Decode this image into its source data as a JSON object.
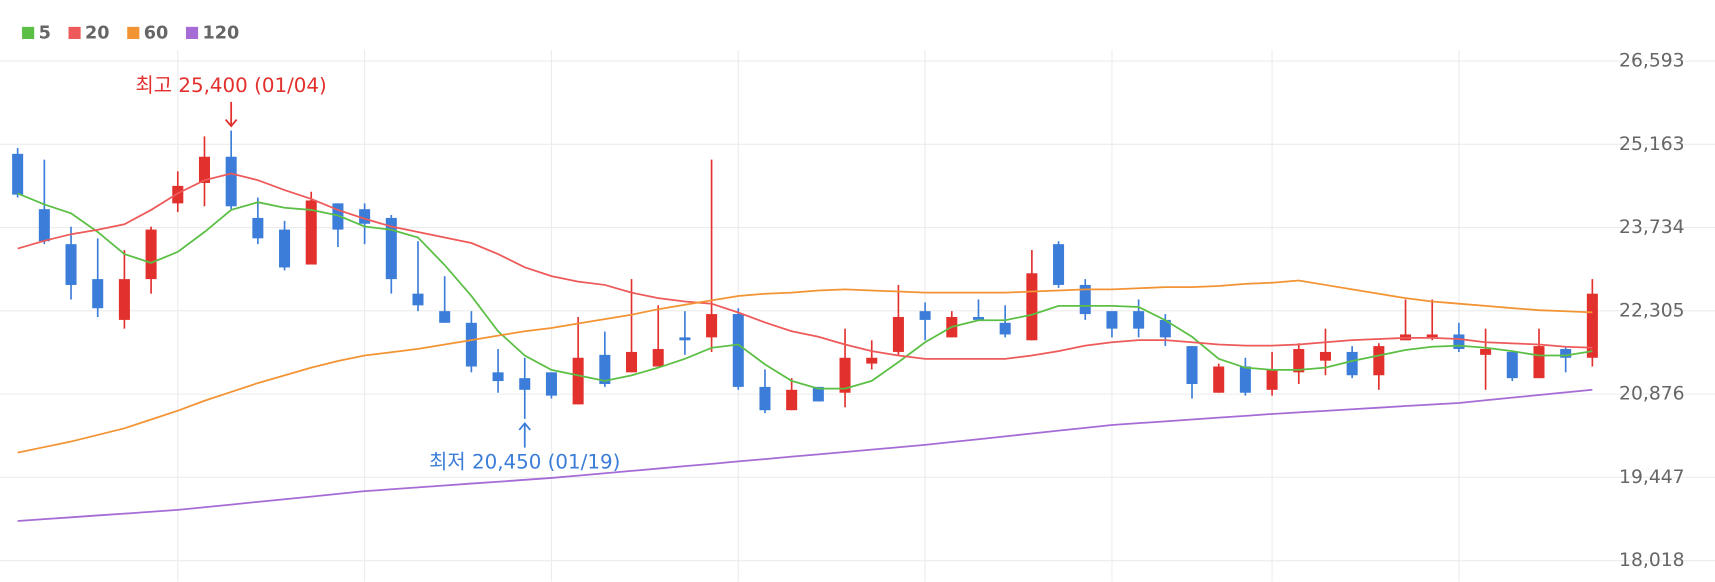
{
  "chart_data": {
    "type": "candlestick",
    "open": [
      25000,
      24050,
      23450,
      22850,
      22150,
      22850,
      24150,
      24500,
      24950,
      23900,
      23700,
      23100,
      24150,
      24050,
      23900,
      22600,
      22300,
      22100,
      21250,
      21150,
      21250,
      20700,
      21550,
      21250,
      21350,
      21850,
      21850,
      22250,
      21000,
      20600,
      21000,
      20900,
      21400,
      21600,
      22300,
      21850,
      22200,
      22100,
      21800,
      23450,
      22750,
      22300,
      22300,
      22150,
      21700,
      20900,
      21350,
      20950,
      21250,
      21450,
      21600,
      21200,
      21800,
      21850,
      21900,
      21550,
      21600,
      21150,
      21650,
      21500
    ],
    "high": [
      25100,
      24900,
      23750,
      23550,
      23350,
      23750,
      24700,
      25300,
      25400,
      24250,
      23850,
      24350,
      24150,
      24150,
      23950,
      23500,
      22900,
      22300,
      21650,
      21500,
      21250,
      22200,
      21950,
      22850,
      22400,
      22300,
      24900,
      22350,
      21300,
      21150,
      21000,
      22000,
      21800,
      22750,
      22450,
      22300,
      22500,
      22400,
      23350,
      23500,
      22850,
      22300,
      22500,
      22250,
      21700,
      21400,
      21500,
      21600,
      21750,
      22000,
      21700,
      21750,
      22500,
      22500,
      22100,
      22000,
      21600,
      22000,
      21700,
      22850
    ],
    "low": [
      24250,
      23450,
      22500,
      22200,
      22000,
      22600,
      24000,
      24100,
      24050,
      23450,
      23000,
      23100,
      23400,
      23450,
      22600,
      22300,
      22100,
      21250,
      20900,
      20450,
      20800,
      20700,
      21000,
      21250,
      21350,
      21550,
      21600,
      20950,
      20550,
      20600,
      20750,
      20650,
      21300,
      21550,
      21800,
      21850,
      22150,
      21850,
      21800,
      22700,
      22150,
      21850,
      21850,
      21700,
      20800,
      20900,
      20850,
      20850,
      21050,
      21200,
      21150,
      20950,
      21800,
      21800,
      21600,
      20950,
      21100,
      21150,
      21250,
      21350
    ],
    "close": [
      24300,
      23500,
      22750,
      22350,
      22850,
      23700,
      24450,
      24950,
      24100,
      23550,
      23050,
      24200,
      23700,
      23800,
      22850,
      22400,
      22100,
      21350,
      21100,
      20950,
      20850,
      21500,
      21050,
      21600,
      21650,
      21800,
      22250,
      21000,
      20600,
      20950,
      20750,
      21500,
      21500,
      22200,
      22150,
      22200,
      22150,
      21900,
      22950,
      22750,
      22250,
      22000,
      22000,
      21850,
      21050,
      21350,
      20900,
      21300,
      21650,
      21600,
      21200,
      21700,
      21900,
      21900,
      21650,
      21650,
      21150,
      21700,
      21500,
      22600
    ],
    "up_color": "#e2302d",
    "down_color": "#3b7dd8",
    "series": [
      {
        "name": "5",
        "color": "#5cbf45",
        "values": [
          24321,
          24132,
          23981,
          23659,
          23280,
          23129,
          23318,
          23659,
          24037,
          24170,
          24075,
          24037,
          23943,
          23753,
          23697,
          23564,
          23091,
          22561,
          21955,
          21539,
          21292,
          21198,
          21103,
          21198,
          21330,
          21482,
          21671,
          21728,
          21387,
          21103,
          20971,
          20971,
          21103,
          21425,
          21766,
          22031,
          22144,
          22144,
          22239,
          22390,
          22390,
          22390,
          22371,
          22144,
          21860,
          21482,
          21330,
          21292,
          21292,
          21330,
          21444,
          21539,
          21633,
          21690,
          21709,
          21671,
          21614,
          21539,
          21539,
          21614
        ]
      },
      {
        "name": "20",
        "color": "#ee5a5a",
        "values": [
          23375,
          23507,
          23621,
          23697,
          23791,
          24037,
          24321,
          24548,
          24662,
          24548,
          24378,
          24227,
          24037,
          23886,
          23753,
          23659,
          23564,
          23469,
          23280,
          23053,
          22902,
          22807,
          22750,
          22617,
          22523,
          22466,
          22428,
          22277,
          22106,
          21955,
          21860,
          21728,
          21614,
          21539,
          21482,
          21482,
          21482,
          21482,
          21539,
          21614,
          21709,
          21766,
          21804,
          21804,
          21766,
          21728,
          21709,
          21709,
          21728,
          21766,
          21804,
          21823,
          21841,
          21841,
          21823,
          21766,
          21747,
          21728,
          21690,
          21671
        ]
      },
      {
        "name": "60",
        "color": "#f39434",
        "values": [
          19873,
          19967,
          20062,
          20176,
          20289,
          20441,
          20592,
          20762,
          20914,
          21065,
          21198,
          21330,
          21444,
          21539,
          21595,
          21652,
          21728,
          21804,
          21879,
          21955,
          22012,
          22087,
          22163,
          22239,
          22334,
          22409,
          22485,
          22561,
          22599,
          22618,
          22655,
          22674,
          22655,
          22636,
          22618,
          22618,
          22618,
          22618,
          22636,
          22655,
          22674,
          22674,
          22693,
          22712,
          22712,
          22731,
          22769,
          22788,
          22826,
          22750,
          22674,
          22599,
          22523,
          22466,
          22428,
          22391,
          22353,
          22316,
          22297,
          22278
        ]
      },
      {
        "name": "120",
        "color": "#a56cd6",
        "values": [
          18699,
          18731,
          18762,
          18794,
          18825,
          18857,
          18888,
          18934,
          18980,
          19026,
          19072,
          19118,
          19164,
          19210,
          19242,
          19275,
          19307,
          19340,
          19372,
          19405,
          19437,
          19478,
          19518,
          19559,
          19599,
          19640,
          19680,
          19721,
          19762,
          19802,
          19843,
          19883,
          19924,
          19964,
          20005,
          20054,
          20102,
          20151,
          20200,
          20249,
          20297,
          20346,
          20378,
          20409,
          20441,
          20472,
          20504,
          20535,
          20562,
          20589,
          20617,
          20644,
          20671,
          20698,
          20725,
          20770,
          20816,
          20861,
          20907,
          20952
        ]
      }
    ],
    "ylim": [
      17658,
      26782
    ],
    "yticks": [
      {
        "value": 26593,
        "label": "26,593"
      },
      {
        "value": 25163,
        "label": "25,163"
      },
      {
        "value": 23734,
        "label": "23,734"
      },
      {
        "value": 22305,
        "label": "22,305"
      },
      {
        "value": 20876,
        "label": "20,876"
      },
      {
        "value": 19447,
        "label": "19,447"
      },
      {
        "value": 18018,
        "label": "18,018"
      }
    ],
    "grid": true,
    "annotations": {
      "high": {
        "text": "최고 25,400 (01/04)",
        "color": "#e2302d"
      },
      "low": {
        "text": "최저 20,450 (01/19)",
        "color": "#3b7dd8"
      }
    }
  }
}
